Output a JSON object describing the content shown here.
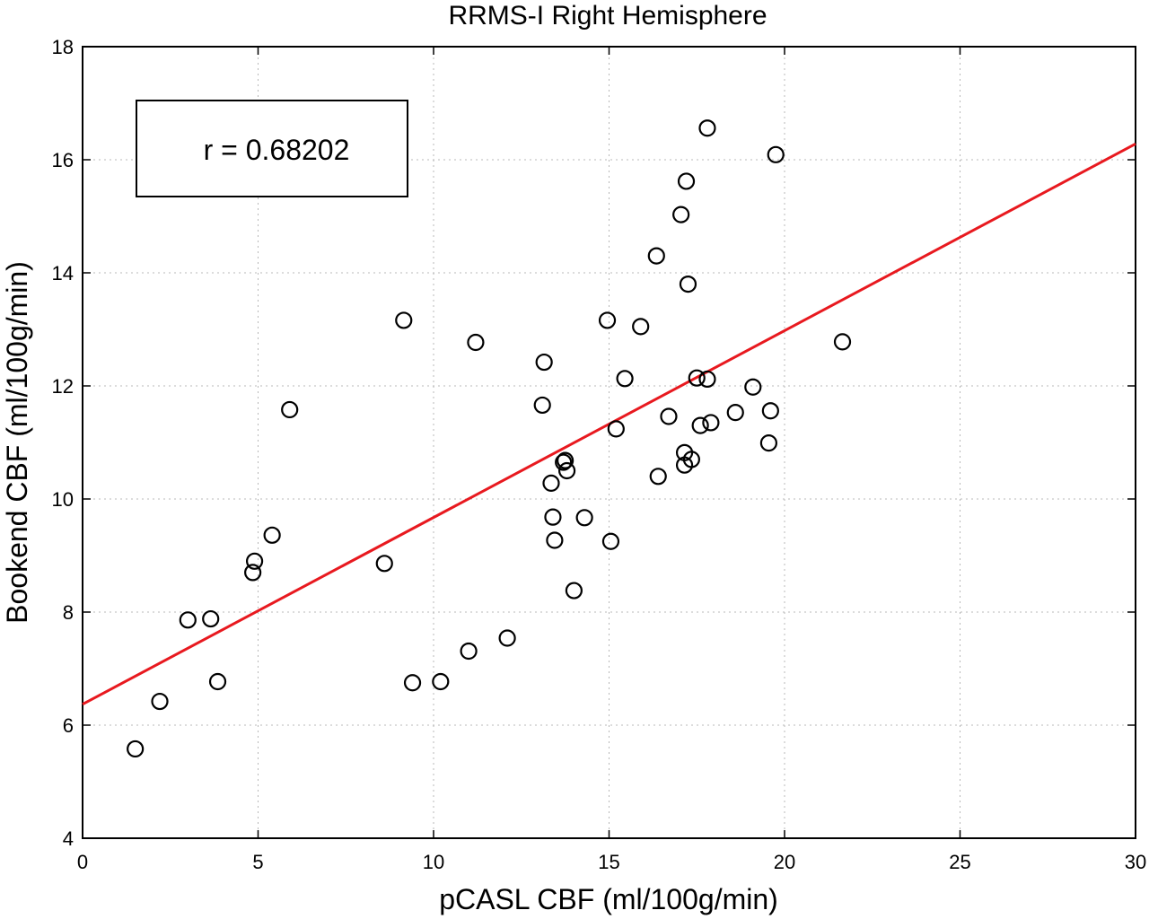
{
  "chart_data": {
    "type": "scatter",
    "title": "RRMS-I Right Hemisphere",
    "xlabel": "pCASL CBF (ml/100g/min)",
    "ylabel": "Bookend CBF (ml/100g/min)",
    "xlim": [
      0,
      30
    ],
    "ylim": [
      4,
      18
    ],
    "xticks": [
      0,
      5,
      10,
      15,
      20,
      25,
      30
    ],
    "yticks": [
      4,
      6,
      8,
      10,
      12,
      14,
      16,
      18
    ],
    "grid": true,
    "annotation": "r = 0.68202",
    "colors": {
      "points": "#000000",
      "fit_line": "#e8191f",
      "axes": "#000000"
    },
    "fit_line": {
      "x": [
        0,
        30
      ],
      "y": [
        6.37,
        16.28
      ]
    },
    "points": [
      {
        "x": 1.5,
        "y": 5.58
      },
      {
        "x": 2.2,
        "y": 6.42
      },
      {
        "x": 3.0,
        "y": 7.86
      },
      {
        "x": 3.65,
        "y": 7.88
      },
      {
        "x": 3.85,
        "y": 6.77
      },
      {
        "x": 4.85,
        "y": 8.7
      },
      {
        "x": 4.9,
        "y": 8.9
      },
      {
        "x": 5.4,
        "y": 9.36
      },
      {
        "x": 5.9,
        "y": 11.58
      },
      {
        "x": 8.6,
        "y": 8.86
      },
      {
        "x": 9.15,
        "y": 13.16
      },
      {
        "x": 9.4,
        "y": 6.75
      },
      {
        "x": 10.2,
        "y": 6.77
      },
      {
        "x": 11.0,
        "y": 7.31
      },
      {
        "x": 11.2,
        "y": 12.77
      },
      {
        "x": 12.1,
        "y": 7.54
      },
      {
        "x": 13.1,
        "y": 11.66
      },
      {
        "x": 13.15,
        "y": 12.42
      },
      {
        "x": 13.35,
        "y": 10.28
      },
      {
        "x": 13.4,
        "y": 9.68
      },
      {
        "x": 13.45,
        "y": 9.27
      },
      {
        "x": 13.7,
        "y": 10.65
      },
      {
        "x": 13.75,
        "y": 10.68
      },
      {
        "x": 13.8,
        "y": 10.5
      },
      {
        "x": 14.0,
        "y": 8.38
      },
      {
        "x": 14.3,
        "y": 9.67
      },
      {
        "x": 14.95,
        "y": 13.16
      },
      {
        "x": 15.05,
        "y": 9.25
      },
      {
        "x": 15.2,
        "y": 11.24
      },
      {
        "x": 15.45,
        "y": 12.13
      },
      {
        "x": 15.9,
        "y": 13.05
      },
      {
        "x": 16.35,
        "y": 14.3
      },
      {
        "x": 16.4,
        "y": 10.4
      },
      {
        "x": 16.7,
        "y": 11.46
      },
      {
        "x": 17.05,
        "y": 15.03
      },
      {
        "x": 17.15,
        "y": 10.82
      },
      {
        "x": 17.15,
        "y": 10.6
      },
      {
        "x": 17.2,
        "y": 15.62
      },
      {
        "x": 17.25,
        "y": 13.8
      },
      {
        "x": 17.35,
        "y": 10.7
      },
      {
        "x": 17.5,
        "y": 12.14
      },
      {
        "x": 17.6,
        "y": 11.3
      },
      {
        "x": 17.8,
        "y": 12.12
      },
      {
        "x": 17.8,
        "y": 16.56
      },
      {
        "x": 17.9,
        "y": 11.35
      },
      {
        "x": 18.6,
        "y": 11.53
      },
      {
        "x": 19.1,
        "y": 11.98
      },
      {
        "x": 19.55,
        "y": 10.99
      },
      {
        "x": 19.6,
        "y": 11.56
      },
      {
        "x": 19.75,
        "y": 16.09
      },
      {
        "x": 21.65,
        "y": 12.78
      }
    ]
  }
}
